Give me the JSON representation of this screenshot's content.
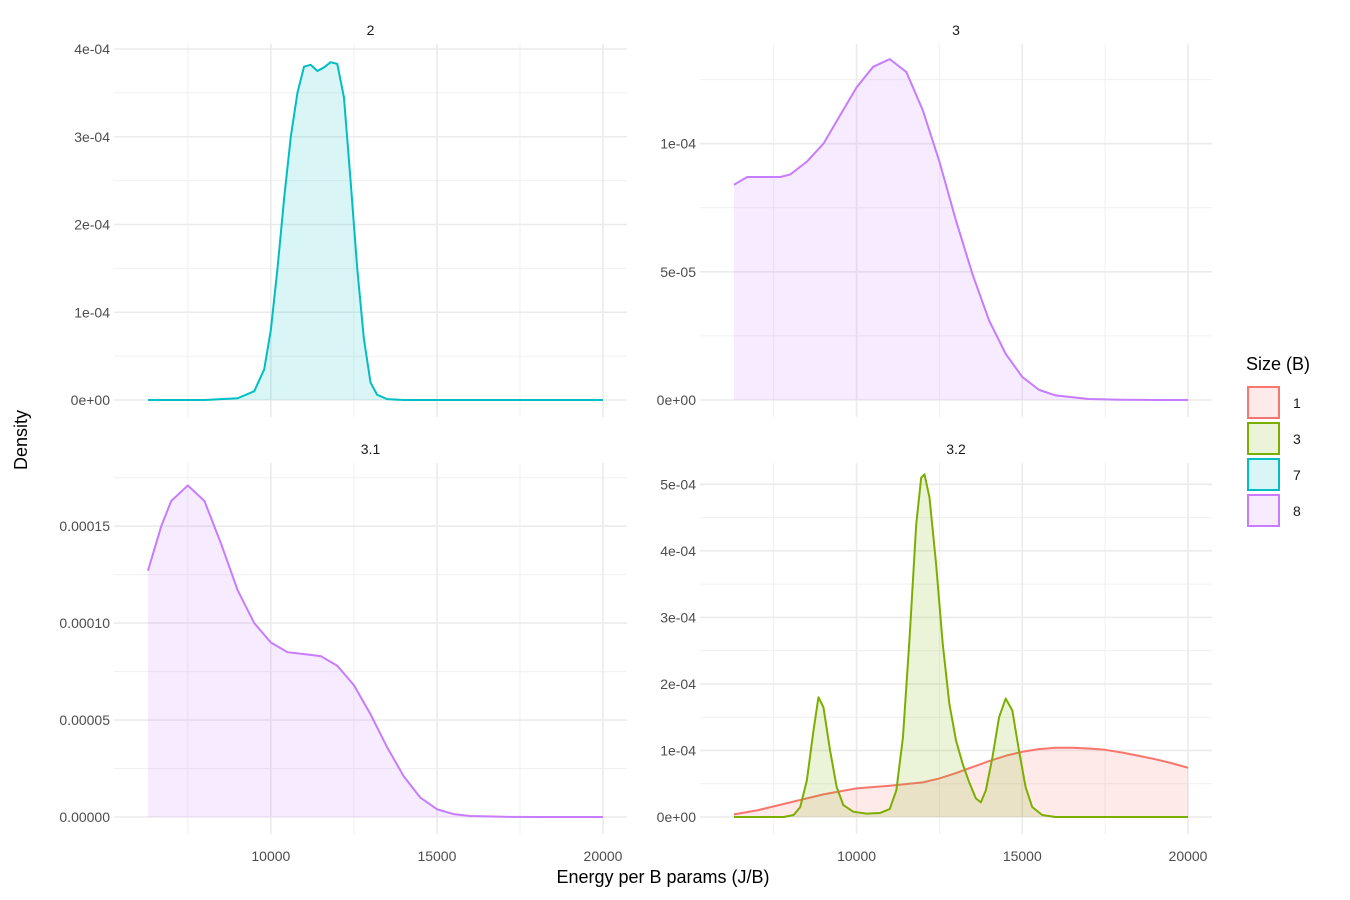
{
  "chart_data": {
    "type": "area",
    "subtype": "density-facet-grid",
    "xlabel": "Energy per B params (J/B)",
    "ylabel": "Density",
    "x_range": [
      6000,
      20000
    ],
    "x_ticks": [
      10000,
      15000,
      20000
    ],
    "x_tick_labels": [
      "10000",
      "15000",
      "20000"
    ],
    "grid": true,
    "legend": {
      "title": "Size (B)",
      "placement": "right",
      "entries": [
        {
          "label": "1",
          "color": "#F8766D"
        },
        {
          "label": "3",
          "color": "#7CAE00"
        },
        {
          "label": "7",
          "color": "#00BFC4"
        },
        {
          "label": "8",
          "color": "#C77CFF"
        }
      ]
    },
    "panels": [
      {
        "strip": "2",
        "y_range": [
          0,
          0.0004
        ],
        "y_ticks": [
          0,
          0.0001,
          0.0002,
          0.0003,
          0.0004
        ],
        "y_tick_labels": [
          "0e+00",
          "1e-04",
          "2e-04",
          "3e-04",
          "4e-04"
        ],
        "series": [
          {
            "size": "7",
            "color": "#00BFC4",
            "x": [
              6300,
              8000,
              9000,
              9500,
              9800,
              10000,
              10200,
              10400,
              10600,
              10800,
              11000,
              11200,
              11400,
              11600,
              11800,
              12000,
              12200,
              12400,
              12600,
              12800,
              13000,
              13200,
              13500,
              14000,
              15000,
              17000,
              20000
            ],
            "y": [
              0,
              0,
              2e-06,
              1e-05,
              3.5e-05,
              8e-05,
              0.00015,
              0.00023,
              0.0003,
              0.00035,
              0.00038,
              0.000382,
              0.000375,
              0.000379,
              0.000385,
              0.000383,
              0.000345,
              0.00025,
              0.00015,
              7e-05,
              2e-05,
              6e-06,
              1e-06,
              0,
              0,
              0,
              0
            ]
          }
        ]
      },
      {
        "strip": "3",
        "y_range": [
          0,
          0.000135
        ],
        "y_ticks": [
          0,
          5e-05,
          0.0001
        ],
        "y_tick_labels": [
          "0e+00",
          "5e-05",
          "1e-04"
        ],
        "series": [
          {
            "size": "8",
            "color": "#C77CFF",
            "x": [
              6300,
              6700,
              7200,
              7700,
              8000,
              8500,
              9000,
              9500,
              10000,
              10500,
              11000,
              11500,
              12000,
              12500,
              13000,
              13500,
              14000,
              14500,
              15000,
              15500,
              16000,
              17000,
              18000,
              19000,
              20000
            ],
            "y": [
              8.4e-05,
              8.7e-05,
              8.7e-05,
              8.7e-05,
              8.8e-05,
              9.3e-05,
              0.0001,
              0.000111,
              0.000122,
              0.00013,
              0.000133,
              0.000128,
              0.000113,
              9.3e-05,
              7e-05,
              4.9e-05,
              3.1e-05,
              1.8e-05,
              9e-06,
              4e-06,
              1.8e-06,
              4e-07,
              1e-07,
              0,
              0
            ]
          }
        ]
      },
      {
        "strip": "3.1",
        "y_range": [
          0,
          0.00018
        ],
        "y_ticks": [
          0,
          5e-05,
          0.0001,
          0.00015
        ],
        "y_tick_labels": [
          "0.00000",
          "0.00005",
          "0.00010",
          "0.00015"
        ],
        "series": [
          {
            "size": "8",
            "color": "#C77CFF",
            "x": [
              6300,
              6700,
              7000,
              7500,
              8000,
              8500,
              9000,
              9500,
              10000,
              10500,
              11000,
              11500,
              12000,
              12500,
              13000,
              13500,
              14000,
              14500,
              15000,
              15500,
              16000,
              17000,
              18000,
              19000,
              20000
            ],
            "y": [
              0.000127,
              0.00015,
              0.000163,
              0.000171,
              0.000163,
              0.000141,
              0.000117,
              0.0001,
              9e-05,
              8.5e-05,
              8.4e-05,
              8.3e-05,
              7.8e-05,
              6.8e-05,
              5.3e-05,
              3.6e-05,
              2.1e-05,
              1e-05,
              4e-06,
              1.5e-06,
              5e-07,
              1e-07,
              0,
              0,
              0
            ]
          }
        ]
      },
      {
        "strip": "3.2",
        "y_range": [
          0,
          0.00052
        ],
        "y_ticks": [
          0,
          0.0001,
          0.0002,
          0.0003,
          0.0004,
          0.0005
        ],
        "y_tick_labels": [
          "0e+00",
          "1e-04",
          "2e-04",
          "3e-04",
          "4e-04",
          "5e-04"
        ],
        "series": [
          {
            "size": "1",
            "color": "#F8766D",
            "x": [
              6300,
              7000,
              8000,
              9000,
              10000,
              11000,
              12000,
              12500,
              13000,
              13500,
              14000,
              14500,
              15000,
              15500,
              16000,
              16500,
              17000,
              17500,
              18000,
              18500,
              19000,
              19500,
              20000
            ],
            "y": [
              4e-06,
              1e-05,
              2.2e-05,
              3.4e-05,
              4.3e-05,
              4.7e-05,
              5.2e-05,
              5.8e-05,
              6.6e-05,
              7.5e-05,
              8.4e-05,
              9.2e-05,
              9.8e-05,
              0.000102,
              0.000104,
              0.000104,
              0.000103,
              0.000101,
              9.7e-05,
              9.2e-05,
              8.7e-05,
              8.1e-05,
              7.4e-05
            ]
          },
          {
            "size": "3",
            "color": "#7CAE00",
            "x": [
              6300,
              7800,
              8100,
              8300,
              8500,
              8700,
              8850,
              9000,
              9200,
              9400,
              9600,
              9900,
              10300,
              10700,
              11000,
              11200,
              11400,
              11600,
              11800,
              11950,
              12050,
              12200,
              12400,
              12600,
              12800,
              13000,
              13200,
              13400,
              13600,
              13750,
              13900,
              14100,
              14300,
              14500,
              14700,
              14900,
              15100,
              15300,
              15600,
              16000,
              17000,
              20000
            ],
            "y": [
              0,
              0,
              3e-06,
              1.5e-05,
              5.5e-05,
              0.00013,
              0.00018,
              0.000165,
              0.0001,
              4.5e-05,
              1.8e-05,
              8e-06,
              5e-06,
              6e-06,
              1.2e-05,
              4e-05,
              0.00012,
              0.00027,
              0.00044,
              0.00051,
              0.000515,
              0.00048,
              0.00038,
              0.00026,
              0.00017,
              0.000115,
              8e-05,
              5.2e-05,
              2.8e-05,
              2.2e-05,
              4e-05,
              9e-05,
              0.00015,
              0.000178,
              0.00016,
              0.0001,
              4.5e-05,
              1.5e-05,
              3e-06,
              0,
              0,
              0
            ]
          }
        ]
      }
    ]
  }
}
